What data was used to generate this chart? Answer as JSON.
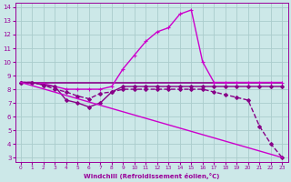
{
  "xlabel": "Windchill (Refroidissement éolien,°C)",
  "bg_color": "#cce8e8",
  "grid_color": "#bbdddd",
  "line_color": "#990099",
  "xlim": [
    -0.5,
    23.5
  ],
  "ylim": [
    2.7,
    14.3
  ],
  "yticks": [
    3,
    4,
    5,
    6,
    7,
    8,
    9,
    10,
    11,
    12,
    13,
    14
  ],
  "xticks": [
    0,
    1,
    2,
    3,
    4,
    5,
    6,
    7,
    8,
    9,
    10,
    11,
    12,
    13,
    14,
    15,
    16,
    17,
    18,
    19,
    20,
    21,
    22,
    23
  ],
  "lines": [
    {
      "x": [
        0,
        23
      ],
      "y": [
        8.5,
        8.5
      ],
      "color": "#880088",
      "lw": 1.2,
      "marker": null,
      "ms": 0,
      "dashed": false
    },
    {
      "x": [
        0,
        1,
        2,
        3,
        4,
        5,
        6,
        7,
        8,
        9,
        10,
        11,
        12,
        13,
        14,
        15,
        16,
        17,
        18,
        19,
        20,
        21,
        22,
        23
      ],
      "y": [
        8.5,
        8.5,
        8.4,
        8.2,
        8.0,
        8.0,
        8.0,
        8.0,
        8.2,
        9.5,
        10.5,
        11.5,
        12.2,
        12.5,
        13.5,
        13.8,
        10.0,
        8.5,
        8.5,
        8.5,
        8.5,
        8.5,
        8.5,
        8.5
      ],
      "color": "#cc00cc",
      "lw": 1.0,
      "marker": "+",
      "ms": 3.5,
      "dashed": false
    },
    {
      "x": [
        0,
        1,
        2,
        3,
        4,
        5,
        6,
        7,
        8,
        9,
        10,
        11,
        12,
        13,
        14,
        15,
        16,
        17,
        18,
        19,
        20,
        21,
        22,
        23
      ],
      "y": [
        8.5,
        8.5,
        8.3,
        8.2,
        7.2,
        7.0,
        6.7,
        7.0,
        7.8,
        8.2,
        8.2,
        8.2,
        8.2,
        8.2,
        8.2,
        8.2,
        8.2,
        8.2,
        8.2,
        8.2,
        8.2,
        8.2,
        8.2,
        8.2
      ],
      "color": "#880088",
      "lw": 1.0,
      "marker": "D",
      "ms": 2.0,
      "dashed": false
    },
    {
      "x": [
        0,
        1,
        2,
        3,
        4,
        5,
        6,
        7,
        8,
        9,
        10,
        11,
        12,
        13,
        14,
        15,
        16,
        17,
        18,
        19,
        20,
        21,
        22,
        23
      ],
      "y": [
        8.5,
        8.5,
        8.3,
        8.0,
        7.8,
        7.5,
        7.3,
        7.7,
        7.8,
        8.0,
        8.0,
        8.0,
        8.0,
        8.0,
        8.0,
        8.0,
        8.0,
        7.8,
        7.6,
        7.4,
        7.2,
        5.3,
        4.0,
        3.0
      ],
      "color": "#880088",
      "lw": 1.0,
      "marker": "D",
      "ms": 2.0,
      "dashed": true
    },
    {
      "x": [
        0,
        23
      ],
      "y": [
        8.5,
        3.0
      ],
      "color": "#cc00cc",
      "lw": 1.0,
      "marker": null,
      "ms": 0,
      "dashed": false
    }
  ]
}
